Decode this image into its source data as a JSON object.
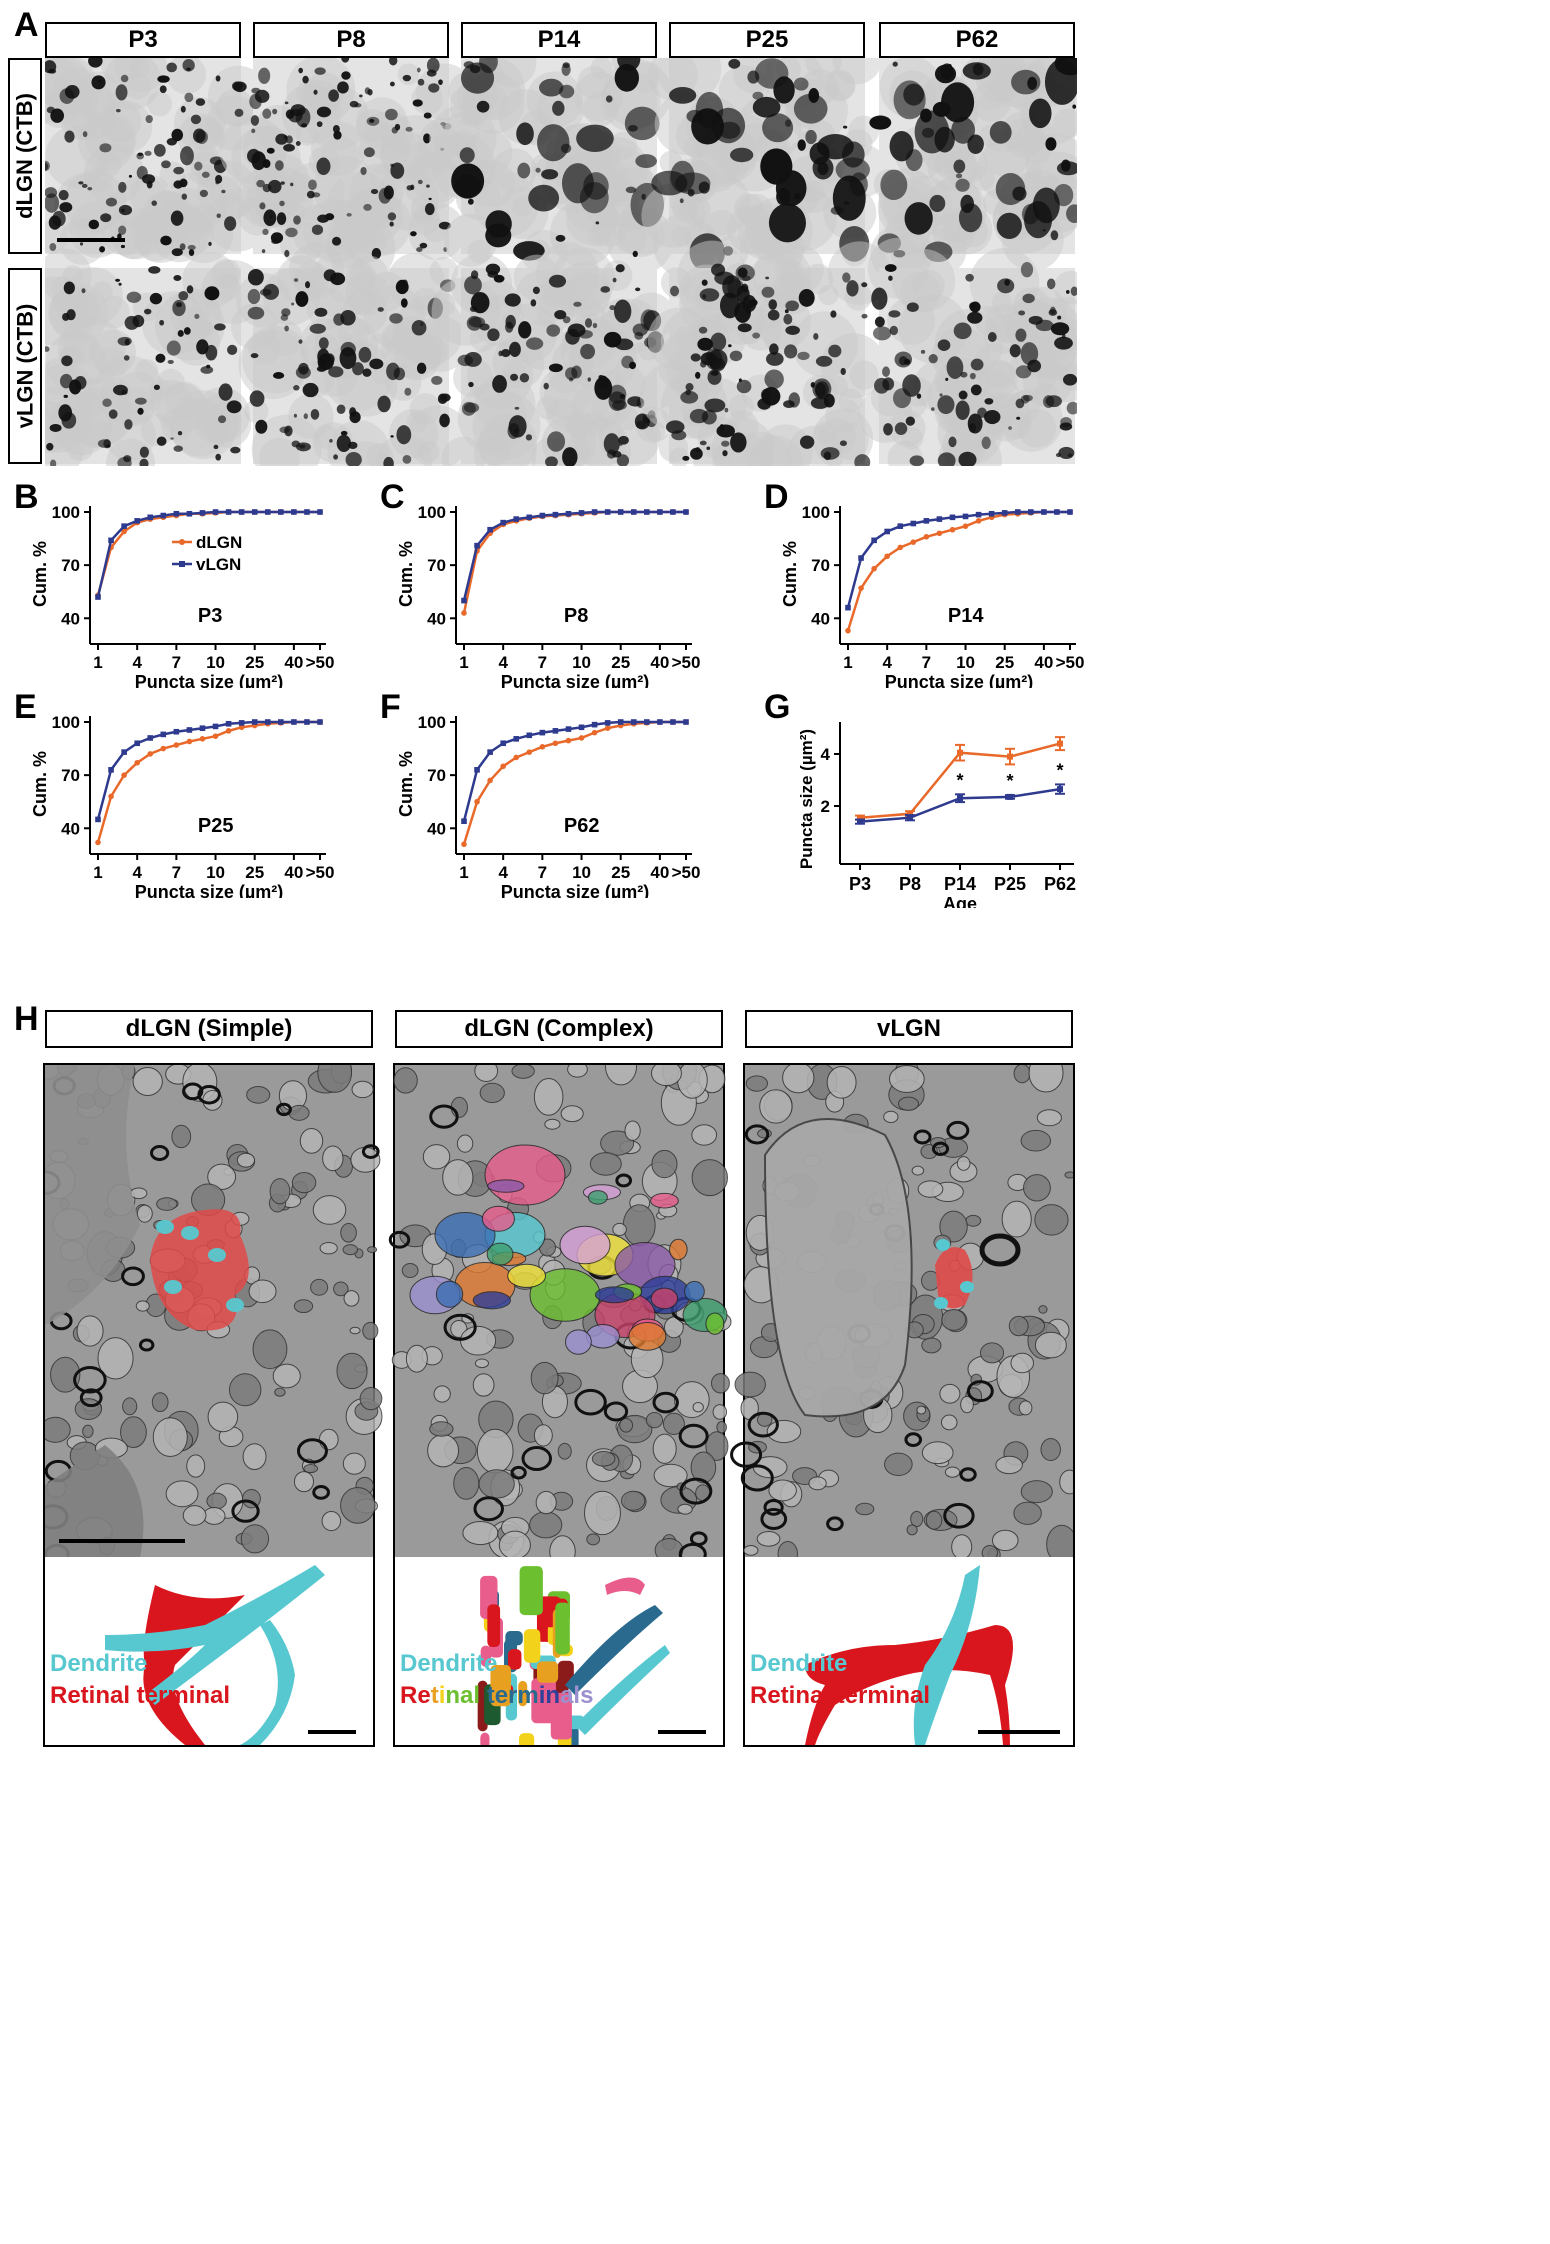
{
  "panelA": {
    "label": "A",
    "columns": [
      "P3",
      "P8",
      "P14",
      "P25",
      "P62"
    ],
    "rows": [
      "dLGN (CTB)",
      "vLGN (CTB)"
    ]
  },
  "cdf_panels": [
    {
      "label": "B",
      "age": "P3"
    },
    {
      "label": "C",
      "age": "P8"
    },
    {
      "label": "D",
      "age": "P14"
    },
    {
      "label": "E",
      "age": "P25"
    },
    {
      "label": "F",
      "age": "P62"
    }
  ],
  "cdf_axes": {
    "ylabel": "Cum. %",
    "xlabel": "Puncta size (µm²)",
    "yticks": [
      "40",
      "70",
      "100"
    ],
    "xticks": [
      "1",
      "4",
      "7",
      "10",
      "25",
      "40",
      ">50"
    ]
  },
  "legend": {
    "dLGN": "dLGN",
    "vLGN": "vLGN"
  },
  "colors": {
    "dLGN": "#e8692a",
    "vLGN": "#2e3a8e",
    "dendrite": "#57c8d0",
    "retinal": "#d9161d"
  },
  "panelG": {
    "label": "G",
    "ylabel": "Puncta size (µm²)",
    "xlabel": "Age",
    "yticks": [
      "2",
      "4"
    ],
    "categories": [
      "P3",
      "P8",
      "P14",
      "P25",
      "P62"
    ],
    "star": "*"
  },
  "panelH": {
    "label": "H",
    "titles": [
      "dLGN (Simple)",
      "dLGN (Complex)",
      "vLGN"
    ],
    "legend_dendrite": "Dendrite",
    "legend_retinal_terminal": "Retinal terminal",
    "legend_multicolor_1": "Re",
    "legend_multicolor_2": "t",
    "legend_multicolor_3": "i",
    "legend_multicolor_4": "nal ",
    "legend_multicolor_5": "term",
    "legend_multicolor_6": "in",
    "legend_multicolor_7": "als"
  },
  "chart_data": [
    {
      "type": "line",
      "title": "P3",
      "xlabel": "Puncta size (µm²)",
      "ylabel": "Cum. %",
      "x": [
        1,
        2,
        3,
        4,
        5,
        6,
        7,
        8,
        9,
        10,
        15,
        20,
        25,
        30,
        35,
        40,
        45,
        50
      ],
      "series": [
        {
          "name": "dLGN",
          "values": [
            53,
            80,
            89,
            94,
            96,
            97,
            98,
            99,
            99,
            99.5,
            100,
            100,
            100,
            100,
            100,
            100,
            100,
            100
          ]
        },
        {
          "name": "vLGN",
          "values": [
            52,
            84,
            92,
            95,
            97,
            98,
            99,
            99,
            99.5,
            100,
            100,
            100,
            100,
            100,
            100,
            100,
            100,
            100
          ]
        }
      ],
      "ylim": [
        30,
        100
      ]
    },
    {
      "type": "line",
      "title": "P8",
      "xlabel": "Puncta size (µm²)",
      "ylabel": "Cum. %",
      "x": [
        1,
        2,
        3,
        4,
        5,
        6,
        7,
        8,
        9,
        10,
        15,
        20,
        25,
        30,
        35,
        40,
        45,
        50
      ],
      "series": [
        {
          "name": "dLGN",
          "values": [
            43,
            78,
            88,
            93,
            95,
            96.5,
            97.5,
            98,
            98.5,
            99,
            99.5,
            100,
            100,
            100,
            100,
            100,
            100,
            100
          ]
        },
        {
          "name": "vLGN",
          "values": [
            50,
            81,
            90,
            94,
            96,
            97,
            98,
            98.5,
            99,
            99.5,
            100,
            100,
            100,
            100,
            100,
            100,
            100,
            100
          ]
        }
      ],
      "ylim": [
        30,
        100
      ]
    },
    {
      "type": "line",
      "title": "P14",
      "xlabel": "Puncta size (µm²)",
      "ylabel": "Cum. %",
      "x": [
        1,
        2,
        3,
        4,
        5,
        6,
        7,
        8,
        9,
        10,
        15,
        20,
        25,
        30,
        35,
        40,
        45,
        50
      ],
      "series": [
        {
          "name": "dLGN",
          "values": [
            33,
            57,
            68,
            75,
            80,
            83,
            86,
            88,
            90,
            92,
            95,
            97,
            98.5,
            99,
            99.5,
            100,
            100,
            100
          ]
        },
        {
          "name": "vLGN",
          "values": [
            46,
            74,
            84,
            89,
            92,
            93.5,
            95,
            96,
            97,
            97.5,
            98.5,
            99,
            99.5,
            100,
            100,
            100,
            100,
            100
          ]
        }
      ],
      "ylim": [
        30,
        100
      ]
    },
    {
      "type": "line",
      "title": "P25",
      "xlabel": "Puncta size (µm²)",
      "ylabel": "Cum. %",
      "x": [
        1,
        2,
        3,
        4,
        5,
        6,
        7,
        8,
        9,
        10,
        15,
        20,
        25,
        30,
        35,
        40,
        45,
        50
      ],
      "series": [
        {
          "name": "dLGN",
          "values": [
            32,
            58,
            70,
            77,
            82,
            85,
            87,
            89,
            90.5,
            92,
            95,
            97,
            98,
            99,
            99.5,
            100,
            100,
            100
          ]
        },
        {
          "name": "vLGN",
          "values": [
            45,
            73,
            83,
            88,
            91,
            93,
            94.5,
            95.5,
            96.5,
            97.5,
            99,
            99.5,
            100,
            100,
            100,
            100,
            100,
            100
          ]
        }
      ],
      "ylim": [
        30,
        100
      ]
    },
    {
      "type": "line",
      "title": "P62",
      "xlabel": "Puncta size (µm²)",
      "ylabel": "Cum. %",
      "x": [
        1,
        2,
        3,
        4,
        5,
        6,
        7,
        8,
        9,
        10,
        15,
        20,
        25,
        30,
        35,
        40,
        45,
        50
      ],
      "series": [
        {
          "name": "dLGN",
          "values": [
            31,
            55,
            67,
            75,
            80,
            83,
            86,
            88,
            89.5,
            91,
            94,
            96.5,
            98,
            99,
            99.5,
            100,
            100,
            100
          ]
        },
        {
          "name": "vLGN",
          "values": [
            44,
            73,
            83,
            88,
            90.5,
            92.5,
            94,
            95,
            96,
            97,
            98.5,
            99.5,
            100,
            100,
            100,
            100,
            100,
            100
          ]
        }
      ],
      "ylim": [
        30,
        100
      ]
    },
    {
      "type": "line",
      "title": "",
      "xlabel": "Age",
      "ylabel": "Puncta size (µm²)",
      "categories": [
        "P3",
        "P8",
        "P14",
        "P25",
        "P62"
      ],
      "series": [
        {
          "name": "dLGN",
          "values": [
            1.55,
            1.7,
            4.05,
            3.9,
            4.4
          ],
          "err": [
            0.08,
            0.1,
            0.3,
            0.3,
            0.25
          ]
        },
        {
          "name": "vLGN",
          "values": [
            1.4,
            1.55,
            2.3,
            2.35,
            2.65
          ],
          "err": [
            0.08,
            0.1,
            0.15,
            0.07,
            0.18
          ]
        }
      ],
      "ylim": [
        0,
        5
      ],
      "significant": [
        false,
        false,
        true,
        true,
        true
      ]
    }
  ]
}
